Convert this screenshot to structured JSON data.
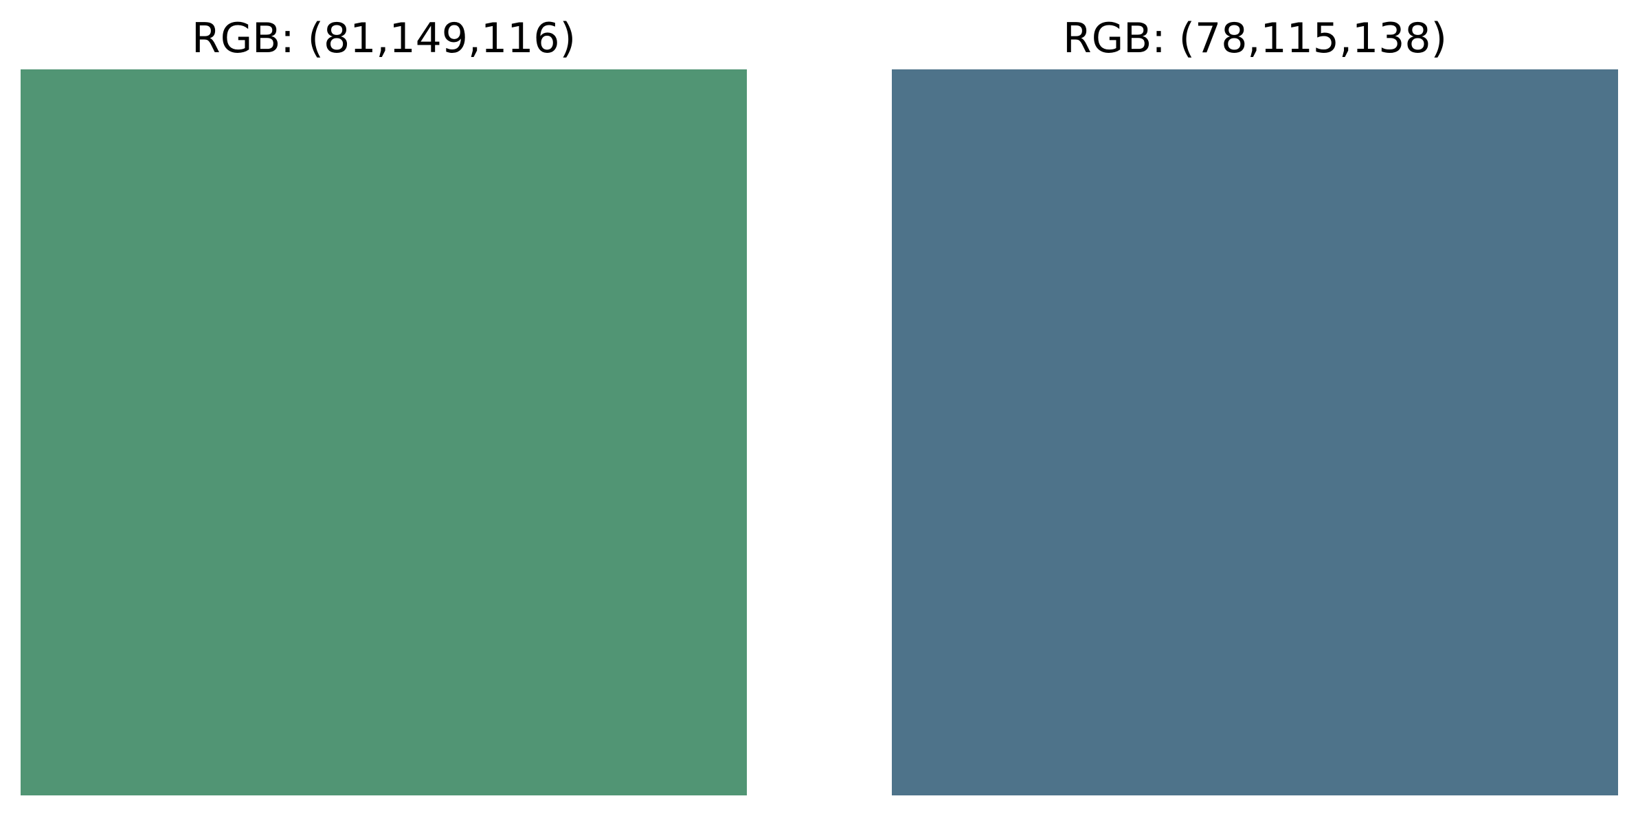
{
  "swatches": [
    {
      "title": "RGB: (81,149,116)",
      "color": "#519574"
    },
    {
      "title": "RGB: (78,115,138)",
      "color": "#4e738a"
    }
  ]
}
